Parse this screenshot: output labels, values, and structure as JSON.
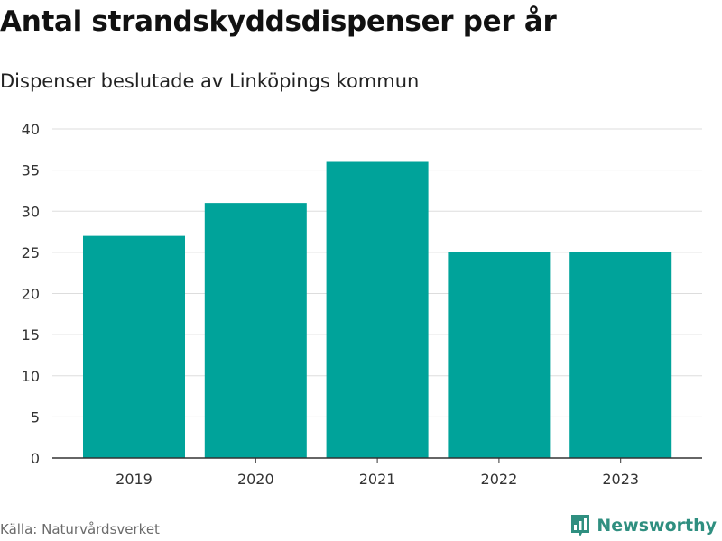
{
  "header": {
    "title": "Antal strandskyddsdispenser per år",
    "subtitle": "Dispenser beslutade av Linköpings kommun"
  },
  "footer": {
    "source": "Källa: Naturvårdsverket",
    "brand": "Newsworthy"
  },
  "colors": {
    "bar": "#00a39a",
    "grid": "#dddddd",
    "axis": "#333333",
    "brand": "#2f8f80"
  },
  "chart_data": {
    "type": "bar",
    "title": "Antal strandskyddsdispenser per år",
    "subtitle": "Dispenser beslutade av Linköpings kommun",
    "categories": [
      "2019",
      "2020",
      "2021",
      "2022",
      "2023"
    ],
    "values": [
      27,
      31,
      36,
      25,
      25
    ],
    "ylim": [
      0,
      40
    ],
    "yticks": [
      0,
      5,
      10,
      15,
      20,
      25,
      30,
      35,
      40
    ],
    "ytick_labels": [
      "0",
      "5",
      "10",
      "15",
      "20",
      "25",
      "30",
      "35",
      "40"
    ],
    "xlabel": "",
    "ylabel": "",
    "grid": true,
    "legend": "none"
  }
}
